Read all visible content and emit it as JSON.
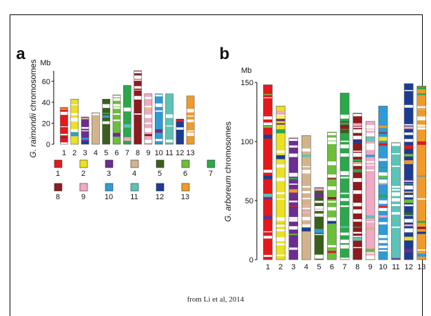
{
  "caption": "from Li et al, 2014",
  "colors": {
    "1": "#e3191c",
    "2": "#ece022",
    "3": "#6c2d91",
    "4": "#d2b48c",
    "5": "#3a5f1b",
    "6": "#6cbf3a",
    "7": "#2aa84a",
    "8": "#8e1b1f",
    "9": "#f2a9c4",
    "10": "#2f9bd6",
    "11": "#5cc3b6",
    "12": "#1c3c94",
    "13": "#f09a2a"
  },
  "chart_data": [
    {
      "panel": "a",
      "type": "bar",
      "unit": "Mb",
      "ylabel_italic": "G. raimondii",
      "ylabel": "chromosomes",
      "ylim": [
        0,
        70
      ],
      "yticks": [
        "0",
        "20",
        "40",
        "60"
      ],
      "categories": [
        "1",
        "2",
        "3",
        "4",
        "5",
        "6",
        "7",
        "8",
        "9",
        "10",
        "11",
        "12",
        "13"
      ],
      "values": [
        35,
        43,
        26,
        30,
        43,
        47,
        56,
        70,
        48,
        48,
        48,
        24,
        46
      ],
      "legend": {
        "items": [
          {
            "label": "1",
            "key": "1"
          },
          {
            "label": "2",
            "key": "2"
          },
          {
            "label": "3",
            "key": "3"
          },
          {
            "label": "4",
            "key": "4"
          },
          {
            "label": "5",
            "key": "5"
          },
          {
            "label": "6",
            "key": "6"
          },
          {
            "label": "7",
            "key": "7"
          },
          {
            "label": "8",
            "key": "8"
          },
          {
            "label": "9",
            "key": "9"
          },
          {
            "label": "10",
            "key": "10"
          },
          {
            "label": "11",
            "key": "11"
          },
          {
            "label": "12",
            "key": "12"
          },
          {
            "label": "13",
            "key": "13"
          }
        ]
      }
    },
    {
      "panel": "b",
      "type": "bar",
      "unit": "Mb",
      "ylabel_italic": "G. arboreum",
      "ylabel": "chromosomes",
      "ylim": [
        0,
        150
      ],
      "yticks": [
        "0",
        "50",
        "100",
        "150"
      ],
      "categories": [
        "1",
        "2",
        "3",
        "4",
        "5",
        "6",
        "7",
        "8",
        "9",
        "10",
        "11",
        "12",
        "13"
      ],
      "values": [
        148,
        130,
        103,
        105,
        61,
        108,
        141,
        124,
        117,
        130,
        99,
        149,
        147
      ]
    }
  ]
}
